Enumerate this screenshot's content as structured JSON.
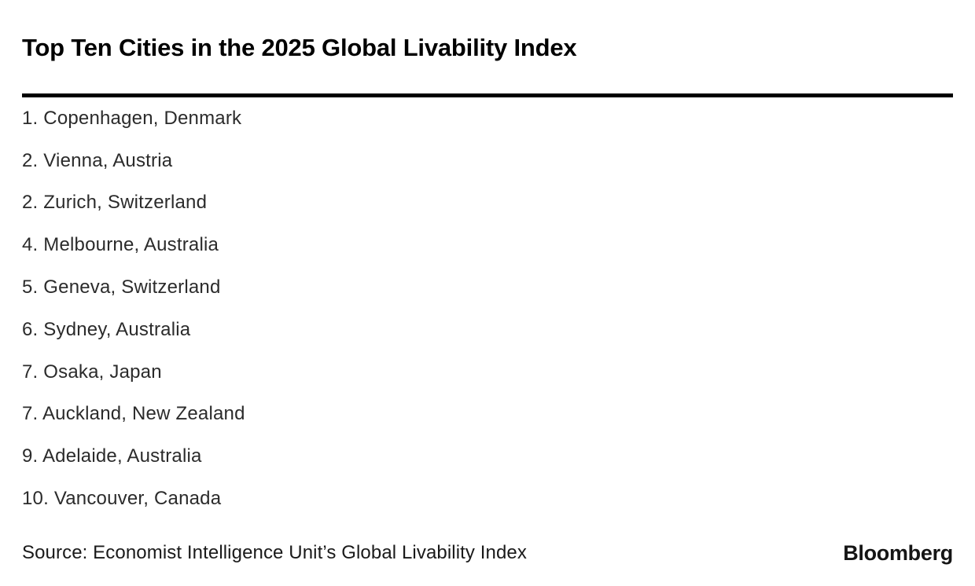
{
  "header": {
    "title": "Top Ten Cities in the 2025 Global Livability Index"
  },
  "footer": {
    "source": "Source: Economist Intelligence Unit’s Global Livability Index",
    "brand": "Bloomberg"
  },
  "chart_data": {
    "type": "table",
    "title": "Top Ten Cities in the 2025 Global Livability Index",
    "source": "Economist Intelligence Unit’s Global Livability Index",
    "columns": [
      "rank",
      "city",
      "country"
    ],
    "rows": [
      {
        "rank": 1,
        "city": "Copenhagen",
        "country": "Denmark",
        "label": "1. Copenhagen, Denmark"
      },
      {
        "rank": 2,
        "city": "Vienna",
        "country": "Austria",
        "label": "2. Vienna, Austria"
      },
      {
        "rank": 2,
        "city": "Zurich",
        "country": "Switzerland",
        "label": "2. Zurich, Switzerland"
      },
      {
        "rank": 4,
        "city": "Melbourne",
        "country": "Australia",
        "label": "4. Melbourne, Australia"
      },
      {
        "rank": 5,
        "city": "Geneva",
        "country": "Switzerland",
        "label": "5. Geneva, Switzerland"
      },
      {
        "rank": 6,
        "city": "Sydney",
        "country": "Australia",
        "label": "6. Sydney, Australia"
      },
      {
        "rank": 7,
        "city": "Osaka",
        "country": "Japan",
        "label": "7. Osaka, Japan"
      },
      {
        "rank": 7,
        "city": "Auckland",
        "country": "New Zealand",
        "label": "7. Auckland, New Zealand"
      },
      {
        "rank": 9,
        "city": "Adelaide",
        "country": "Australia",
        "label": "9. Adelaide, Australia"
      },
      {
        "rank": 10,
        "city": "Vancouver",
        "country": "Canada",
        "label": "10. Vancouver, Canada"
      }
    ]
  }
}
